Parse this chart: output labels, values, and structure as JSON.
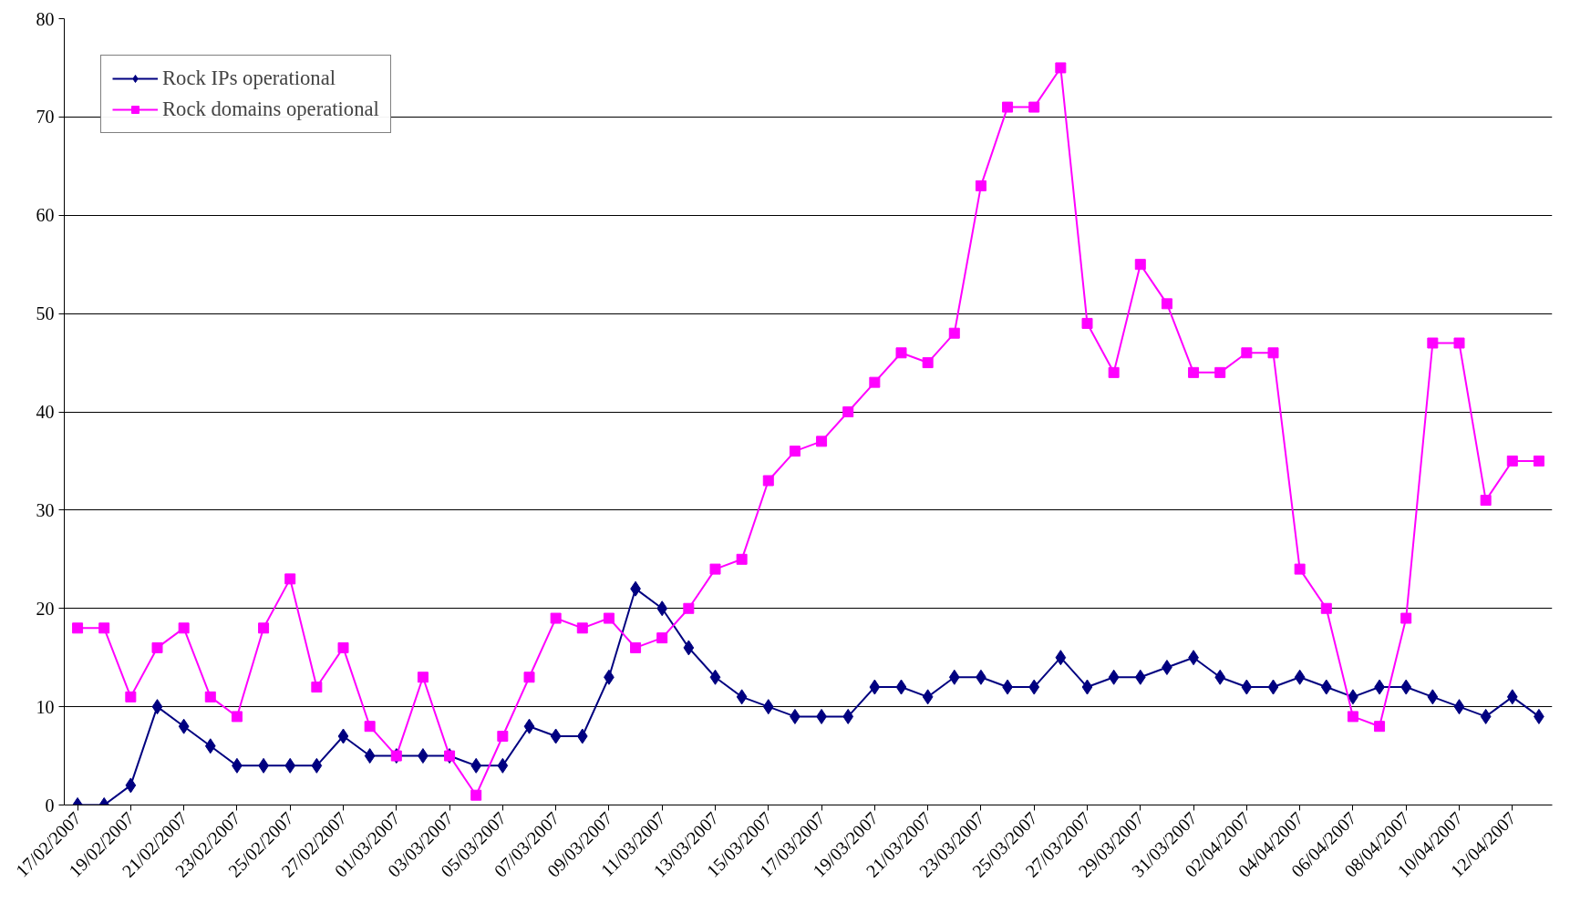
{
  "chart_data": {
    "type": "line",
    "categories": [
      "17/02/2007",
      null,
      "19/02/2007",
      null,
      "21/02/2007",
      null,
      "23/02/2007",
      null,
      "25/02/2007",
      null,
      "27/02/2007",
      null,
      "01/03/2007",
      null,
      "03/03/2007",
      null,
      "05/03/2007",
      null,
      "07/03/2007",
      null,
      "09/03/2007",
      null,
      "11/03/2007",
      null,
      "13/03/2007",
      null,
      "15/03/2007",
      null,
      "17/03/2007",
      null,
      "19/03/2007",
      null,
      "21/03/2007",
      null,
      "23/03/2007",
      null,
      "25/03/2007",
      null,
      "27/03/2007",
      null,
      "29/03/2007",
      null,
      "31/03/2007",
      null,
      "02/04/2007",
      null,
      "04/04/2007",
      null,
      "06/04/2007",
      null,
      "08/04/2007",
      null,
      "10/04/2007",
      null,
      "12/04/2007",
      null
    ],
    "series": [
      {
        "name": "Rock IPs operational",
        "color": "#000080",
        "marker": "diamond",
        "values": [
          0,
          0,
          2,
          10,
          8,
          6,
          4,
          4,
          4,
          4,
          7,
          5,
          5,
          5,
          5,
          4,
          4,
          8,
          7,
          7,
          13,
          22,
          20,
          16,
          13,
          11,
          10,
          9,
          9,
          9,
          12,
          12,
          11,
          13,
          13,
          12,
          12,
          15,
          12,
          13,
          13,
          14,
          15,
          13,
          12,
          12,
          13,
          12,
          11,
          12,
          12,
          11,
          10,
          9,
          11,
          9
        ]
      },
      {
        "name": "Rock domains operational",
        "color": "#ff00ff",
        "marker": "square",
        "values": [
          18,
          18,
          11,
          16,
          18,
          11,
          9,
          18,
          23,
          12,
          16,
          8,
          5,
          13,
          5,
          1,
          7,
          13,
          19,
          18,
          19,
          16,
          17,
          20,
          24,
          25,
          33,
          36,
          37,
          40,
          43,
          46,
          45,
          48,
          63,
          71,
          71,
          75,
          49,
          44,
          55,
          51,
          44,
          44,
          46,
          46,
          24,
          20,
          9,
          8,
          19,
          47,
          47,
          31,
          35,
          35
        ]
      }
    ],
    "ylim": [
      0,
      80
    ],
    "yticks": [
      0,
      10,
      20,
      30,
      40,
      50,
      60,
      70,
      80
    ],
    "grid": "y",
    "legend": "top left",
    "line_style": "solid"
  }
}
